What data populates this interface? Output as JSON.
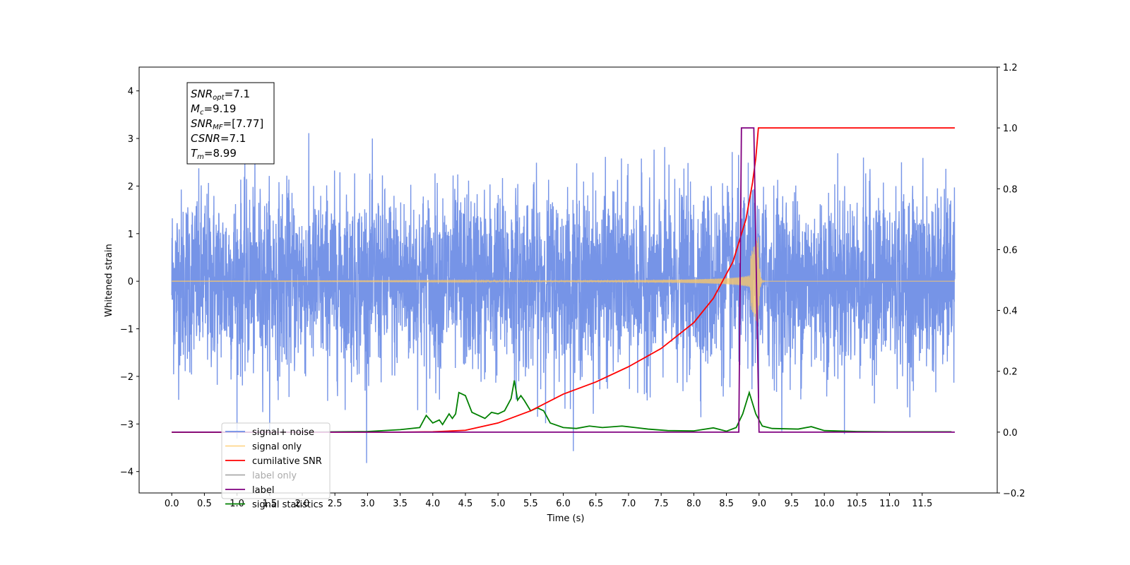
{
  "chart_data": {
    "type": "line",
    "xlabel": "Time (s)",
    "ylabel": "Whitened strain",
    "xlim": [
      -0.5,
      12.65
    ],
    "ylim": [
      -4.45,
      4.5
    ],
    "y2lim": [
      -0.2,
      1.2
    ],
    "x_ticks": [
      "0.0",
      "0.5",
      "1.0",
      "1.5",
      "2.0",
      "2.5",
      "3.0",
      "3.5",
      "4.0",
      "4.5",
      "5.0",
      "5.5",
      "6.0",
      "6.5",
      "7.0",
      "7.5",
      "8.0",
      "8.5",
      "9.0",
      "9.5",
      "10.0",
      "10.5",
      "11.0",
      "11.5"
    ],
    "y_ticks": [
      "4",
      "3",
      "2",
      "1",
      "0",
      "−1",
      "−2",
      "−3",
      "−4"
    ],
    "y2_ticks": [
      "1.2",
      "1.0",
      "0.8",
      "0.6",
      "0.4",
      "0.2",
      "0.0",
      "−0.2"
    ],
    "grid": false,
    "legend_position": "lower-left",
    "info_box": [
      {
        "main": "SNR",
        "sub": "opt",
        "value": "=7.1"
      },
      {
        "main": "M",
        "sub": "c",
        "value": "=9.19"
      },
      {
        "main": "SNR",
        "sub": "MF",
        "value": "=[7.77]"
      },
      {
        "main": "CSNR",
        "sub": "",
        "value": "=7.1"
      },
      {
        "main": "T",
        "sub": "m",
        "value": "=8.99"
      }
    ],
    "series": [
      {
        "name": "signal+ noise",
        "axis": "left",
        "color": "#6f8ee6",
        "description_range": [
          -4.0,
          4.1
        ],
        "x_range": [
          0.0,
          12.0
        ],
        "std": 1.0
      },
      {
        "name": "signal only",
        "axis": "left",
        "color": "#ffc966",
        "x_range": [
          0.0,
          12.0
        ],
        "merger_time": 8.99,
        "peak_amplitude": 0.95
      },
      {
        "name": "cumilative SNR",
        "axis": "right",
        "color": "#ff0000",
        "points": [
          [
            0.0,
            0.0
          ],
          [
            3.5,
            0.0
          ],
          [
            4.0,
            0.001
          ],
          [
            4.5,
            0.006
          ],
          [
            5.0,
            0.03
          ],
          [
            5.5,
            0.07
          ],
          [
            6.0,
            0.125
          ],
          [
            6.5,
            0.165
          ],
          [
            7.0,
            0.215
          ],
          [
            7.5,
            0.275
          ],
          [
            8.0,
            0.36
          ],
          [
            8.3,
            0.44
          ],
          [
            8.6,
            0.56
          ],
          [
            8.8,
            0.7
          ],
          [
            8.9,
            0.82
          ],
          [
            8.95,
            0.9
          ],
          [
            8.99,
            1.0
          ],
          [
            12.0,
            1.0
          ]
        ]
      },
      {
        "name": "label only",
        "axis": "right",
        "color": "#aaaaaa",
        "points": []
      },
      {
        "name": "label",
        "axis": "right",
        "color": "#800080",
        "points": [
          [
            0.0,
            0.0
          ],
          [
            8.69,
            0.0
          ],
          [
            8.73,
            1.0
          ],
          [
            8.92,
            1.0
          ],
          [
            9.0,
            0.0
          ],
          [
            12.0,
            0.0
          ]
        ]
      },
      {
        "name": "signal statistics",
        "axis": "right",
        "color": "#008000",
        "points": [
          [
            0.0,
            0.0
          ],
          [
            2.0,
            0.0
          ],
          [
            3.0,
            0.002
          ],
          [
            3.5,
            0.008
          ],
          [
            3.8,
            0.015
          ],
          [
            3.9,
            0.055
          ],
          [
            4.0,
            0.03
          ],
          [
            4.1,
            0.04
          ],
          [
            4.15,
            0.025
          ],
          [
            4.25,
            0.06
          ],
          [
            4.3,
            0.045
          ],
          [
            4.35,
            0.06
          ],
          [
            4.4,
            0.13
          ],
          [
            4.5,
            0.12
          ],
          [
            4.6,
            0.065
          ],
          [
            4.8,
            0.045
          ],
          [
            4.9,
            0.065
          ],
          [
            5.0,
            0.06
          ],
          [
            5.1,
            0.07
          ],
          [
            5.2,
            0.11
          ],
          [
            5.25,
            0.17
          ],
          [
            5.3,
            0.105
          ],
          [
            5.35,
            0.12
          ],
          [
            5.4,
            0.105
          ],
          [
            5.5,
            0.07
          ],
          [
            5.6,
            0.08
          ],
          [
            5.7,
            0.07
          ],
          [
            5.8,
            0.03
          ],
          [
            6.0,
            0.015
          ],
          [
            6.2,
            0.012
          ],
          [
            6.4,
            0.02
          ],
          [
            6.6,
            0.015
          ],
          [
            6.9,
            0.02
          ],
          [
            7.1,
            0.015
          ],
          [
            7.3,
            0.01
          ],
          [
            7.6,
            0.005
          ],
          [
            8.0,
            0.004
          ],
          [
            8.3,
            0.014
          ],
          [
            8.5,
            0.003
          ],
          [
            8.65,
            0.015
          ],
          [
            8.75,
            0.06
          ],
          [
            8.85,
            0.13
          ],
          [
            8.95,
            0.06
          ],
          [
            9.05,
            0.02
          ],
          [
            9.2,
            0.012
          ],
          [
            9.6,
            0.01
          ],
          [
            9.8,
            0.018
          ],
          [
            10.0,
            0.005
          ],
          [
            10.5,
            0.002
          ],
          [
            11.0,
            0.001
          ],
          [
            11.95,
            0.001
          ]
        ]
      }
    ]
  }
}
